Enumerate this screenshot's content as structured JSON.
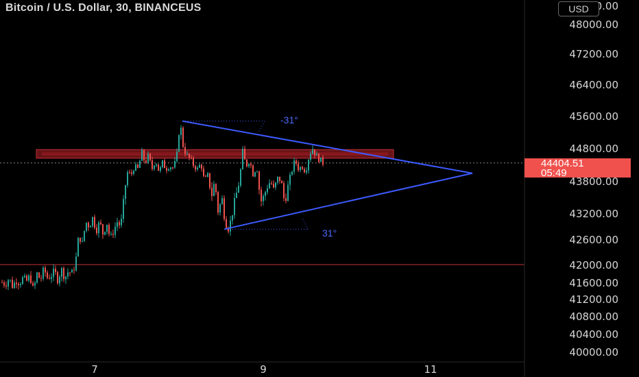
{
  "header": {
    "title": "Bitcoin / U.S. Dollar, 30, BINANCEUS",
    "currency": "USD"
  },
  "price_tag": {
    "price": "44404.51",
    "countdown": "05:49"
  },
  "annotations": {
    "angle_top": "-31°",
    "angle_bottom": "31°"
  },
  "colors": {
    "up": "#26a69a",
    "down": "#ef5350",
    "triangle": "#3d5afe",
    "zone": "#8b1a1f",
    "price_tag": "#f0514d"
  },
  "chart_data": {
    "type": "candlestick",
    "symbol": "Bitcoin / U.S. Dollar",
    "interval": "30",
    "exchange": "BINANCEUS",
    "y_ticks": [
      48000,
      47200,
      46400,
      45600,
      44800,
      44400,
      43800,
      43200,
      42600,
      42000,
      41600,
      41200,
      40800,
      40400,
      40000
    ],
    "y_tick_labels": [
      "48000.00",
      "47200.00",
      "46400.00",
      "45600.00",
      "44800.00",
      "44400.00",
      "43800.00",
      "43200.00",
      "42600.00",
      "42000.00",
      "41600.00",
      "41200.00",
      "40800.00",
      "40400.00",
      "40000.00"
    ],
    "x_tick_labels": [
      "7",
      "9",
      "11"
    ],
    "current_price": 44404.51,
    "horizontal_line": 42000,
    "resistance_zone": [
      44530,
      44760
    ],
    "triangle": {
      "apex_price": 44060,
      "upper_from": 45470,
      "lower_from": 42830
    },
    "price_path": [
      41600,
      41550,
      41700,
      41500,
      41650,
      41580,
      41700,
      41620,
      41750,
      41400,
      41800,
      41650,
      41900,
      41700,
      41750,
      41850,
      41650,
      41900,
      41700,
      41850,
      41800,
      42000,
      42700,
      42500,
      43000,
      42900,
      43100,
      42800,
      43000,
      42700,
      43000,
      42600,
      42800,
      43000,
      42900,
      43500,
      44100,
      44000,
      44300,
      44200,
      44700,
      44400,
      44600,
      44200,
      44500,
      44100,
      44400,
      44200,
      44300,
      44250,
      44500,
      45470,
      44800,
      44600,
      44500,
      44300,
      44200,
      44400,
      43800,
      44000,
      43500,
      43800,
      43200,
      43500,
      43000,
      42830,
      43200,
      43500,
      43800,
      44700,
      44300,
      44500,
      44000,
      44300,
      43400,
      43500,
      43700,
      43800,
      43600,
      43900,
      43800,
      43400,
      43700,
      44100,
      44500,
      44200,
      44300,
      44100,
      44600,
      44800,
      44600,
      44500,
      44400
    ]
  }
}
